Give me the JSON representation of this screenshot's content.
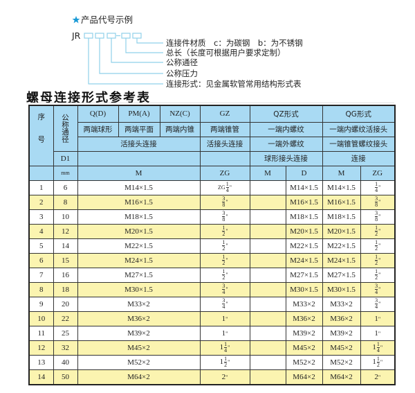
{
  "diagram": {
    "heading": "产品代号示例",
    "icon": "star-icon",
    "accent": "#1a9ad6",
    "code_prefix": "JR",
    "labels": [
      "连接件材质　c：为碳钢　b：为不锈钢",
      "总长（长度可根据用户要求定制）",
      "公称通径",
      "公称压力",
      "连接形式：见金属软管常用结构形式表"
    ]
  },
  "title": "螺母连接形式参考表",
  "colors": {
    "header_bg": "#a9daf3",
    "alt_row_bg": "#fbf4b0",
    "line": "#8fd0ea"
  },
  "table": {
    "header": {
      "seq": "序号",
      "dn": "公称通径",
      "d1": "D1",
      "mm": "mm",
      "qd": "Q(D)",
      "pma": "PM(A)",
      "nzc": "NZ(C)",
      "gz": "GZ",
      "qz": "QZ形式",
      "qg": "QG形式",
      "qd_desc": "两端球形",
      "pma_desc": "两端平面",
      "nzc_desc": "两端内锥",
      "gz_desc": "两端锥管",
      "qz_desc": "一端内螺纹",
      "qg_desc": "一端内螺纹活接头",
      "live_joint": "活接头连接",
      "gz_conn": "活接头连接",
      "qz_desc2": "一端外螺纹",
      "qg_desc2": "一端锥管螺纹接头",
      "qz_desc3": "球形接头连接",
      "qg_desc3": "连接",
      "m": "M",
      "zg": "ZG",
      "qz_m": "M",
      "qz_d": "D",
      "qg_m": "M",
      "qg_zg": "ZG"
    },
    "rows": [
      {
        "seq": "1",
        "dn": "6",
        "m": "M14×1.5",
        "zg": {
          "prefix": "ZG",
          "whole": "",
          "num": "1",
          "den": "4",
          "unit": "\""
        },
        "qz_m": "",
        "qz_d": "M14×1.5",
        "qg_m": "M14×1.5",
        "qg_zg": {
          "prefix": "",
          "whole": "",
          "num": "1",
          "den": "4",
          "unit": "\""
        }
      },
      {
        "seq": "2",
        "dn": "8",
        "m": "M16×1.5",
        "zg": {
          "prefix": "",
          "whole": "",
          "num": "3",
          "den": "8",
          "unit": "\""
        },
        "qz_m": "",
        "qz_d": "M16×1.5",
        "qg_m": "M16×1.5",
        "qg_zg": {
          "prefix": "",
          "whole": "",
          "num": "3",
          "den": "8",
          "unit": "\""
        }
      },
      {
        "seq": "3",
        "dn": "10",
        "m": "M18×1.5",
        "zg": {
          "prefix": "",
          "whole": "",
          "num": "3",
          "den": "8",
          "unit": "\""
        },
        "qz_m": "",
        "qz_d": "M18×1.5",
        "qg_m": "M18×1.5",
        "qg_zg": {
          "prefix": "",
          "whole": "",
          "num": "3",
          "den": "8",
          "unit": "\""
        }
      },
      {
        "seq": "4",
        "dn": "12",
        "m": "M20×1.5",
        "zg": {
          "prefix": "",
          "whole": "",
          "num": "1",
          "den": "2",
          "unit": "\""
        },
        "qz_m": "",
        "qz_d": "M20×1.5",
        "qg_m": "M20×1.5",
        "qg_zg": {
          "prefix": "",
          "whole": "",
          "num": "1",
          "den": "2",
          "unit": "\""
        }
      },
      {
        "seq": "5",
        "dn": "14",
        "m": "M22×1.5",
        "zg": {
          "prefix": "",
          "whole": "",
          "num": "1",
          "den": "2",
          "unit": "\""
        },
        "qz_m": "",
        "qz_d": "M22×1.5",
        "qg_m": "M22×1.5",
        "qg_zg": {
          "prefix": "",
          "whole": "",
          "num": "1",
          "den": "2",
          "unit": "\""
        }
      },
      {
        "seq": "6",
        "dn": "15",
        "m": "M24×1.5",
        "zg": {
          "prefix": "",
          "whole": "",
          "num": "1",
          "den": "2",
          "unit": "\""
        },
        "qz_m": "",
        "qz_d": "M24×1.5",
        "qg_m": "M24×1.5",
        "qg_zg": {
          "prefix": "",
          "whole": "",
          "num": "1",
          "den": "2",
          "unit": "\""
        }
      },
      {
        "seq": "7",
        "dn": "16",
        "m": "M27×1.5",
        "zg": {
          "prefix": "",
          "whole": "",
          "num": "1",
          "den": "2",
          "unit": "\""
        },
        "qz_m": "",
        "qz_d": "M27×1.5",
        "qg_m": "M27×1.5",
        "qg_zg": {
          "prefix": "",
          "whole": "",
          "num": "1",
          "den": "2",
          "unit": "\""
        }
      },
      {
        "seq": "8",
        "dn": "18",
        "m": "M30×1.5",
        "zg": {
          "prefix": "",
          "whole": "",
          "num": "3",
          "den": "4",
          "unit": "\""
        },
        "qz_m": "",
        "qz_d": "M30×1.5",
        "qg_m": "M30×1.5",
        "qg_zg": {
          "prefix": "",
          "whole": "",
          "num": "3",
          "den": "4",
          "unit": "\""
        }
      },
      {
        "seq": "9",
        "dn": "20",
        "m": "M33×2",
        "zg": {
          "prefix": "",
          "whole": "",
          "num": "3",
          "den": "4",
          "unit": "\""
        },
        "qz_m": "",
        "qz_d": "M33×2",
        "qg_m": "M33×2",
        "qg_zg": {
          "prefix": "",
          "whole": "",
          "num": "3",
          "den": "4",
          "unit": "\""
        }
      },
      {
        "seq": "10",
        "dn": "22",
        "m": "M36×2",
        "zg": {
          "prefix": "",
          "whole": "1",
          "num": "",
          "den": "",
          "unit": "\""
        },
        "qz_m": "",
        "qz_d": "M36×2",
        "qg_m": "M36×2",
        "qg_zg": {
          "prefix": "",
          "whole": "1",
          "num": "",
          "den": "",
          "unit": "\""
        }
      },
      {
        "seq": "11",
        "dn": "25",
        "m": "M39×2",
        "zg": {
          "prefix": "",
          "whole": "1",
          "num": "",
          "den": "",
          "unit": "\""
        },
        "qz_m": "",
        "qz_d": "M39×2",
        "qg_m": "M39×2",
        "qg_zg": {
          "prefix": "",
          "whole": "1",
          "num": "",
          "den": "",
          "unit": "\""
        }
      },
      {
        "seq": "12",
        "dn": "32",
        "m": "M45×2",
        "zg": {
          "prefix": "",
          "whole": "1",
          "num": "1",
          "den": "4",
          "unit": "\""
        },
        "qz_m": "",
        "qz_d": "M45×2",
        "qg_m": "M45×2",
        "qg_zg": {
          "prefix": "",
          "whole": "1",
          "num": "1",
          "den": "4",
          "unit": "\""
        }
      },
      {
        "seq": "13",
        "dn": "40",
        "m": "M52×2",
        "zg": {
          "prefix": "",
          "whole": "1",
          "num": "1",
          "den": "2",
          "unit": "\""
        },
        "qz_m": "",
        "qz_d": "M52×2",
        "qg_m": "M52×2",
        "qg_zg": {
          "prefix": "",
          "whole": "1",
          "num": "1",
          "den": "2",
          "unit": "\""
        }
      },
      {
        "seq": "14",
        "dn": "50",
        "m": "M64×2",
        "zg": {
          "prefix": "",
          "whole": "2",
          "num": "",
          "den": "",
          "unit": "\""
        },
        "qz_m": "",
        "qz_d": "M64×2",
        "qg_m": "M64×2",
        "qg_zg": {
          "prefix": "",
          "whole": "2",
          "num": "",
          "den": "",
          "unit": "\""
        }
      }
    ]
  }
}
